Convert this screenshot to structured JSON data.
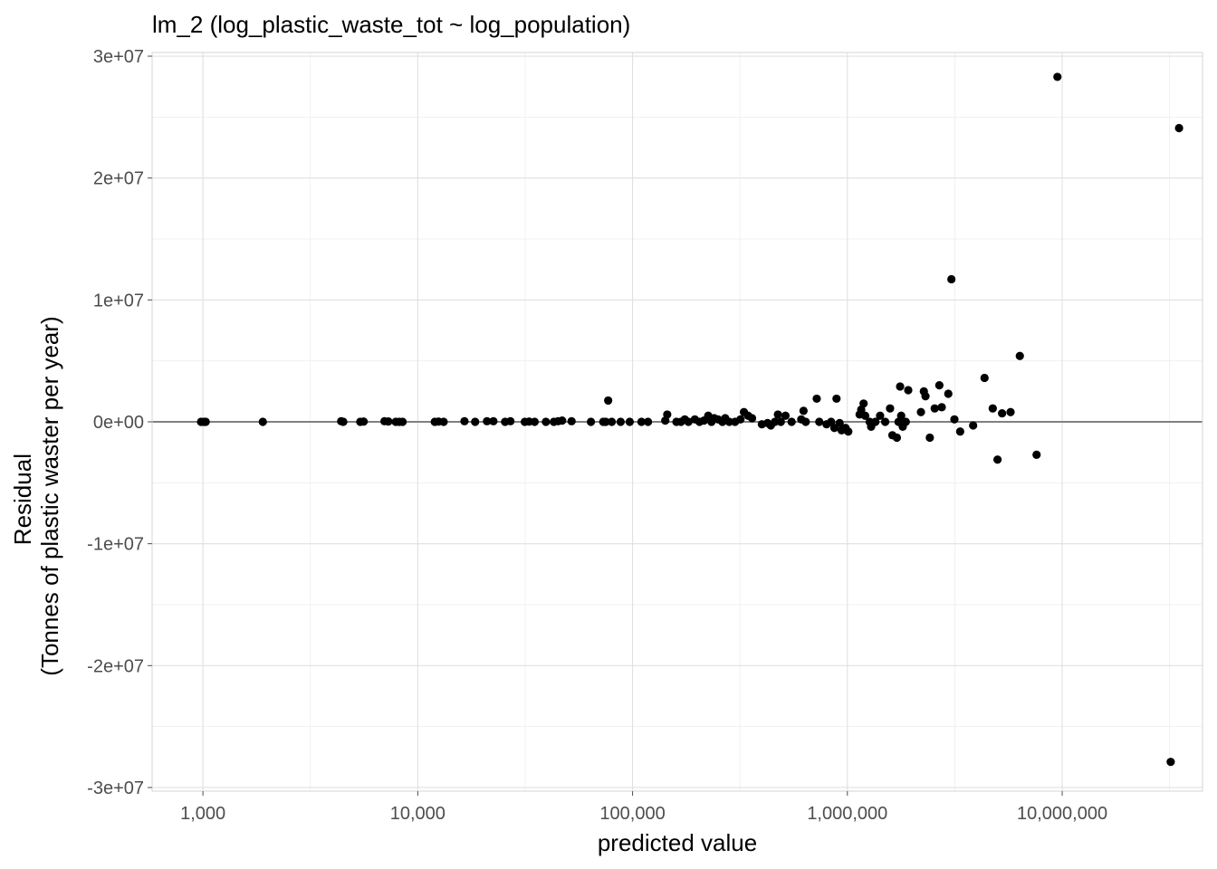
{
  "chart_data": {
    "type": "scatter",
    "title": "lm_2 (log_plastic_waste_tot ~ log_population)",
    "xlabel": "predicted value",
    "ylabel": [
      "Residual",
      "(Tonnes of plastic waster per year)"
    ],
    "x_scale": "log10",
    "xlim": [
      580,
      45000000
    ],
    "ylim": [
      -30300000,
      30300000
    ],
    "x_ticks": [
      {
        "value": 1000,
        "label": "1,000"
      },
      {
        "value": 10000,
        "label": "10,000"
      },
      {
        "value": 100000,
        "label": "100,000"
      },
      {
        "value": 1000000,
        "label": "1,000,000"
      },
      {
        "value": 10000000,
        "label": "10,000,000"
      }
    ],
    "y_ticks": [
      {
        "value": 30000000,
        "label": "3e+07"
      },
      {
        "value": 20000000,
        "label": "2e+07"
      },
      {
        "value": 10000000,
        "label": "1e+07"
      },
      {
        "value": 0,
        "label": "0e+00"
      },
      {
        "value": -10000000,
        "label": "-1e+07"
      },
      {
        "value": -20000000,
        "label": "-2e+07"
      },
      {
        "value": -30000000,
        "label": "-3e+07"
      }
    ],
    "hline": 0,
    "grid": true,
    "points": [
      [
        980,
        0
      ],
      [
        1010,
        0
      ],
      [
        1030,
        0
      ],
      [
        1900,
        0
      ],
      [
        4400,
        50000
      ],
      [
        4500,
        0
      ],
      [
        5400,
        0
      ],
      [
        5600,
        20000
      ],
      [
        7000,
        50000
      ],
      [
        7300,
        30000
      ],
      [
        7900,
        0
      ],
      [
        8200,
        0
      ],
      [
        8500,
        0
      ],
      [
        12000,
        0
      ],
      [
        12500,
        20000
      ],
      [
        13200,
        0
      ],
      [
        16500,
        50000
      ],
      [
        18500,
        0
      ],
      [
        21000,
        50000
      ],
      [
        22500,
        50000
      ],
      [
        25500,
        0
      ],
      [
        27000,
        50000
      ],
      [
        31500,
        0
      ],
      [
        33000,
        20000
      ],
      [
        35000,
        0
      ],
      [
        39500,
        0
      ],
      [
        43000,
        0
      ],
      [
        45000,
        50000
      ],
      [
        47000,
        100000
      ],
      [
        52000,
        50000
      ],
      [
        64000,
        0
      ],
      [
        73000,
        0
      ],
      [
        75000,
        0
      ],
      [
        77000,
        1750000
      ],
      [
        80000,
        0
      ],
      [
        88000,
        0
      ],
      [
        97000,
        0
      ],
      [
        110000,
        0
      ],
      [
        118000,
        0
      ],
      [
        142000,
        100000
      ],
      [
        145000,
        600000
      ],
      [
        160000,
        0
      ],
      [
        168000,
        0
      ],
      [
        175000,
        200000
      ],
      [
        182000,
        0
      ],
      [
        195000,
        200000
      ],
      [
        205000,
        0
      ],
      [
        215000,
        100000
      ],
      [
        225000,
        500000
      ],
      [
        233000,
        0
      ],
      [
        240000,
        300000
      ],
      [
        250000,
        200000
      ],
      [
        262000,
        0
      ],
      [
        270000,
        300000
      ],
      [
        282000,
        0
      ],
      [
        300000,
        0
      ],
      [
        318000,
        200000
      ],
      [
        330000,
        800000
      ],
      [
        345000,
        500000
      ],
      [
        360000,
        300000
      ],
      [
        400000,
        -200000
      ],
      [
        425000,
        -100000
      ],
      [
        440000,
        -300000
      ],
      [
        460000,
        0
      ],
      [
        475000,
        600000
      ],
      [
        490000,
        0
      ],
      [
        515000,
        500000
      ],
      [
        550000,
        0
      ],
      [
        610000,
        200000
      ],
      [
        625000,
        900000
      ],
      [
        640000,
        0
      ],
      [
        720000,
        1900000
      ],
      [
        740000,
        0
      ],
      [
        800000,
        -200000
      ],
      [
        840000,
        0
      ],
      [
        870000,
        -500000
      ],
      [
        890000,
        1900000
      ],
      [
        920000,
        -100000
      ],
      [
        940000,
        -700000
      ],
      [
        980000,
        -500000
      ],
      [
        1010000,
        -800000
      ],
      [
        1140000,
        600000
      ],
      [
        1160000,
        1000000
      ],
      [
        1190000,
        1500000
      ],
      [
        1210000,
        500000
      ],
      [
        1270000,
        0
      ],
      [
        1290000,
        -400000
      ],
      [
        1350000,
        0
      ],
      [
        1420000,
        500000
      ],
      [
        1500000,
        0
      ],
      [
        1580000,
        1100000
      ],
      [
        1620000,
        -1100000
      ],
      [
        1700000,
        -1300000
      ],
      [
        1730000,
        0
      ],
      [
        1760000,
        2900000
      ],
      [
        1780000,
        500000
      ],
      [
        1810000,
        -400000
      ],
      [
        1870000,
        0
      ],
      [
        1920000,
        2600000
      ],
      [
        2200000,
        800000
      ],
      [
        2270000,
        2500000
      ],
      [
        2310000,
        2100000
      ],
      [
        2420000,
        -1300000
      ],
      [
        2550000,
        1100000
      ],
      [
        2680000,
        3000000
      ],
      [
        2750000,
        1200000
      ],
      [
        2950000,
        2300000
      ],
      [
        3050000,
        11700000
      ],
      [
        3150000,
        200000
      ],
      [
        3350000,
        -800000
      ],
      [
        3850000,
        -300000
      ],
      [
        4350000,
        3600000
      ],
      [
        4750000,
        1100000
      ],
      [
        5000000,
        -3100000
      ],
      [
        5250000,
        700000
      ],
      [
        5750000,
        800000
      ],
      [
        6350000,
        5400000
      ],
      [
        7600000,
        -2700000
      ],
      [
        9500000,
        28300000
      ],
      [
        32000000,
        -27900000
      ],
      [
        35000000,
        24100000
      ]
    ]
  }
}
